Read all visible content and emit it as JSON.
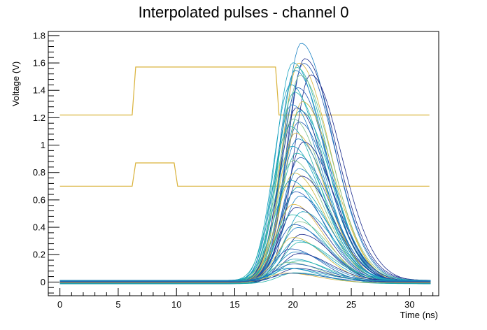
{
  "chart_data": {
    "type": "line",
    "title": "Interpolated pulses - channel 0",
    "xlabel": "Time (ns)",
    "ylabel": "Voltage (V)",
    "xlim": [
      -1,
      32.5
    ],
    "ylim": [
      -0.1,
      1.83
    ],
    "x_ticks": [
      0,
      5,
      10,
      15,
      20,
      25,
      30
    ],
    "y_ticks": [
      0,
      0.2,
      0.4,
      0.6,
      0.8,
      1,
      1.2,
      1.4,
      1.6,
      1.8
    ],
    "x_tick_labels": [
      "0",
      "5",
      "10",
      "15",
      "20",
      "25",
      "30"
    ],
    "y_tick_labels": [
      "0",
      "0.2",
      "0.4",
      "0.6",
      "0.8",
      "1",
      "1.2",
      "1.4",
      "1.6",
      "1.8"
    ],
    "grid": false,
    "colors": {
      "gate": "#d9b23a",
      "palette": [
        "#1a2a8c",
        "#1f57b3",
        "#1c82c4",
        "#17a2c0",
        "#22b3a8",
        "#7cc08a",
        "#c6b43c"
      ]
    },
    "series": [
      {
        "kind": "step",
        "color": "#d9b23a",
        "x": [
          0,
          6.2,
          6.5,
          18.5,
          18.8,
          31.7
        ],
        "y": [
          1.22,
          1.22,
          1.57,
          1.57,
          1.22,
          1.22
        ]
      },
      {
        "kind": "step",
        "color": "#d9b23a",
        "x": [
          0,
          6.2,
          6.5,
          9.8,
          10.1,
          31.7
        ],
        "y": [
          0.7,
          0.7,
          0.87,
          0.87,
          0.7,
          0.7
        ]
      },
      {
        "kind": "pulse",
        "peak_time": 20.7,
        "amplitude": 1.74,
        "color": "#1c82c4"
      },
      {
        "kind": "pulse",
        "peak_time": 21.0,
        "amplitude": 1.62,
        "color": "#1a2a8c"
      },
      {
        "kind": "pulse",
        "peak_time": 20.0,
        "amplitude": 1.61,
        "color": "#17a2c0"
      },
      {
        "kind": "pulse",
        "peak_time": 20.5,
        "amplitude": 1.6,
        "color": "#d9b23a"
      },
      {
        "kind": "pulse",
        "peak_time": 20.9,
        "amplitude": 1.59,
        "color": "#1f57b3"
      },
      {
        "kind": "pulse",
        "peak_time": 20.3,
        "amplitude": 1.58,
        "color": "#22b3a8"
      },
      {
        "kind": "pulse",
        "peak_time": 20.2,
        "amplitude": 1.55,
        "color": "#1c82c4"
      },
      {
        "kind": "pulse",
        "peak_time": 21.5,
        "amplitude": 1.51,
        "color": "#1a2a8c"
      },
      {
        "kind": "pulse",
        "peak_time": 20.6,
        "amplitude": 1.5,
        "color": "#7cc08a"
      },
      {
        "kind": "pulse",
        "peak_time": 19.8,
        "amplitude": 1.45,
        "color": "#17a2c0"
      },
      {
        "kind": "pulse",
        "peak_time": 20.4,
        "amplitude": 1.42,
        "color": "#1f57b3"
      },
      {
        "kind": "pulse",
        "peak_time": 20.1,
        "amplitude": 1.38,
        "color": "#22b3a8"
      },
      {
        "kind": "pulse",
        "peak_time": 20.8,
        "amplitude": 1.33,
        "color": "#c6b43c"
      },
      {
        "kind": "pulse",
        "peak_time": 19.9,
        "amplitude": 1.3,
        "color": "#1c82c4"
      },
      {
        "kind": "pulse",
        "peak_time": 20.3,
        "amplitude": 1.27,
        "color": "#1a2a8c"
      },
      {
        "kind": "pulse",
        "peak_time": 20.6,
        "amplitude": 1.24,
        "color": "#17a2c0"
      },
      {
        "kind": "pulse",
        "peak_time": 20.0,
        "amplitude": 1.2,
        "color": "#7cc08a"
      },
      {
        "kind": "pulse",
        "peak_time": 20.5,
        "amplitude": 1.17,
        "color": "#1f57b3"
      },
      {
        "kind": "pulse",
        "peak_time": 19.7,
        "amplitude": 1.13,
        "color": "#22b3a8"
      },
      {
        "kind": "pulse",
        "peak_time": 20.2,
        "amplitude": 1.1,
        "color": "#d9b23a"
      },
      {
        "kind": "pulse",
        "peak_time": 20.4,
        "amplitude": 1.05,
        "color": "#1c82c4"
      },
      {
        "kind": "pulse",
        "peak_time": 20.9,
        "amplitude": 1.02,
        "color": "#1a2a8c"
      },
      {
        "kind": "pulse",
        "peak_time": 19.9,
        "amplitude": 0.98,
        "color": "#17a2c0"
      },
      {
        "kind": "pulse",
        "peak_time": 20.3,
        "amplitude": 0.95,
        "color": "#22b3a8"
      },
      {
        "kind": "pulse",
        "peak_time": 20.6,
        "amplitude": 0.91,
        "color": "#1f57b3"
      },
      {
        "kind": "pulse",
        "peak_time": 20.0,
        "amplitude": 0.88,
        "color": "#7cc08a"
      },
      {
        "kind": "pulse",
        "peak_time": 20.5,
        "amplitude": 0.84,
        "color": "#1c82c4"
      },
      {
        "kind": "pulse",
        "peak_time": 20.1,
        "amplitude": 0.8,
        "color": "#c6b43c"
      },
      {
        "kind": "pulse",
        "peak_time": 20.7,
        "amplitude": 0.77,
        "color": "#1a2a8c"
      },
      {
        "kind": "pulse",
        "peak_time": 19.8,
        "amplitude": 0.73,
        "color": "#17a2c0"
      },
      {
        "kind": "pulse",
        "peak_time": 20.4,
        "amplitude": 0.7,
        "color": "#22b3a8"
      },
      {
        "kind": "pulse",
        "peak_time": 20.2,
        "amplitude": 0.66,
        "color": "#1f57b3"
      },
      {
        "kind": "pulse",
        "peak_time": 20.6,
        "amplitude": 0.62,
        "color": "#1c82c4"
      },
      {
        "kind": "pulse",
        "peak_time": 20.0,
        "amplitude": 0.58,
        "color": "#d9b23a"
      },
      {
        "kind": "pulse",
        "peak_time": 20.3,
        "amplitude": 0.55,
        "color": "#1a2a8c"
      },
      {
        "kind": "pulse",
        "peak_time": 20.8,
        "amplitude": 0.51,
        "color": "#17a2c0"
      },
      {
        "kind": "pulse",
        "peak_time": 19.9,
        "amplitude": 0.48,
        "color": "#22b3a8"
      },
      {
        "kind": "pulse",
        "peak_time": 20.5,
        "amplitude": 0.45,
        "color": "#7cc08a"
      },
      {
        "kind": "pulse",
        "peak_time": 20.1,
        "amplitude": 0.42,
        "color": "#1f57b3"
      },
      {
        "kind": "pulse",
        "peak_time": 20.4,
        "amplitude": 0.39,
        "color": "#1c82c4"
      },
      {
        "kind": "pulse",
        "peak_time": 20.7,
        "amplitude": 0.36,
        "color": "#1a2a8c"
      },
      {
        "kind": "pulse",
        "peak_time": 20.0,
        "amplitude": 0.33,
        "color": "#c6b43c"
      },
      {
        "kind": "pulse",
        "peak_time": 20.3,
        "amplitude": 0.3,
        "color": "#17a2c0"
      },
      {
        "kind": "pulse",
        "peak_time": 20.6,
        "amplitude": 0.28,
        "color": "#22b3a8"
      },
      {
        "kind": "pulse",
        "peak_time": 19.8,
        "amplitude": 0.25,
        "color": "#1f57b3"
      },
      {
        "kind": "pulse",
        "peak_time": 20.2,
        "amplitude": 0.22,
        "color": "#1c82c4"
      },
      {
        "kind": "pulse",
        "peak_time": 20.5,
        "amplitude": 0.2,
        "color": "#1a2a8c"
      },
      {
        "kind": "pulse",
        "peak_time": 20.1,
        "amplitude": 0.18,
        "color": "#17a2c0"
      },
      {
        "kind": "pulse",
        "peak_time": 20.4,
        "amplitude": 0.16,
        "color": "#22b3a8"
      },
      {
        "kind": "pulse",
        "peak_time": 19.6,
        "amplitude": 0.14,
        "color": "#7cc08a"
      },
      {
        "kind": "pulse",
        "peak_time": 20.0,
        "amplitude": 0.12,
        "color": "#1f57b3"
      },
      {
        "kind": "pulse",
        "peak_time": 19.5,
        "amplitude": 0.11,
        "color": "#1c82c4"
      },
      {
        "kind": "pulse",
        "peak_time": 20.3,
        "amplitude": 0.1,
        "color": "#1a2a8c"
      },
      {
        "kind": "pulse",
        "peak_time": 19.8,
        "amplitude": 0.09,
        "color": "#17a2c0"
      },
      {
        "kind": "pulse",
        "peak_time": 20.2,
        "amplitude": 0.08,
        "color": "#22b3a8"
      },
      {
        "kind": "pulse",
        "peak_time": 19.4,
        "amplitude": 0.07,
        "color": "#d9b23a"
      },
      {
        "kind": "pulse",
        "peak_time": 19.9,
        "amplitude": 0.06,
        "color": "#1f57b3"
      }
    ]
  }
}
